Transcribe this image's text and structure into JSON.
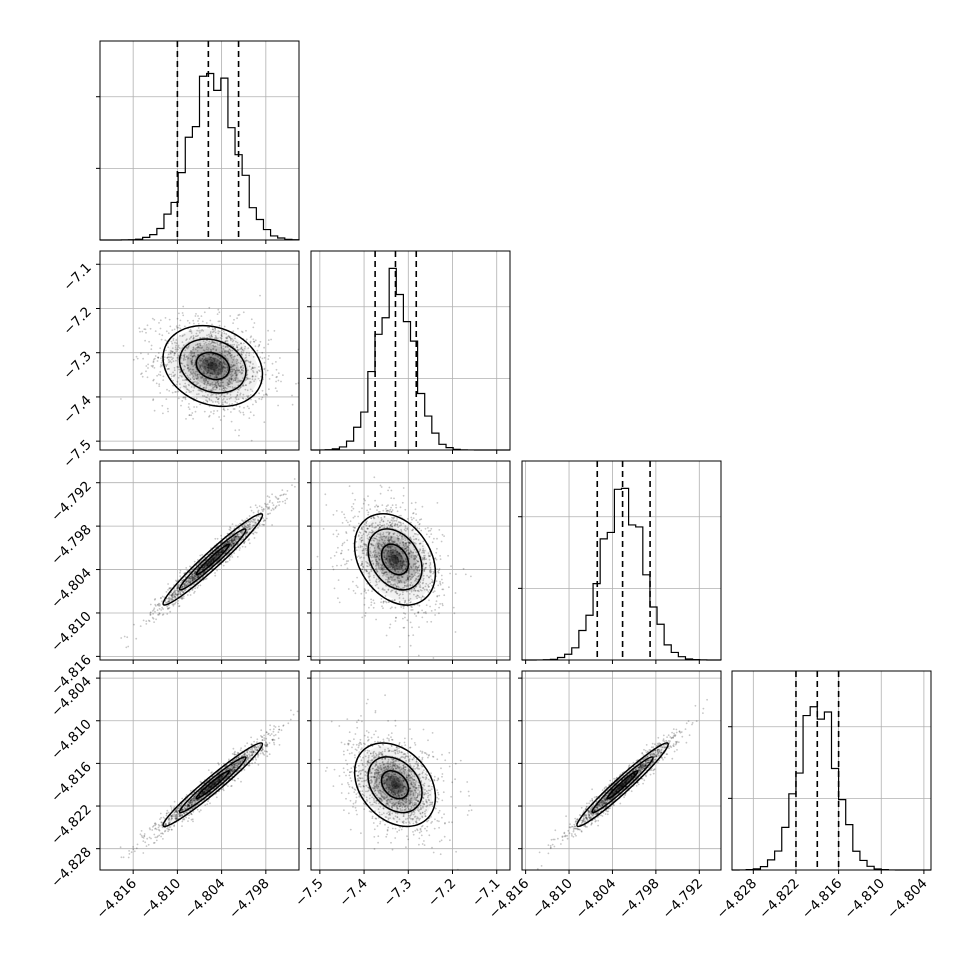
{
  "figure": {
    "type": "corner-plot",
    "grid": true,
    "legend": "none"
  },
  "chart_data": {
    "type": "corner",
    "title": "",
    "parameters": [
      {
        "name": "",
        "range": [
          -4.8205,
          -4.7935
        ],
        "ticks": [
          "−4.816",
          "−4.810",
          "−4.804",
          "−4.798"
        ],
        "tick_values": [
          -4.816,
          -4.81,
          -4.804,
          -4.798
        ],
        "mean": -4.8052,
        "sd": 0.0031,
        "quantiles": [
          -4.81,
          -4.8058,
          -4.8017
        ]
      },
      {
        "name": "",
        "range": [
          -7.52,
          -7.07
        ],
        "ticks": [
          "−7.5",
          "−7.4",
          "−7.3",
          "−7.2",
          "−7.1"
        ],
        "tick_values": [
          -7.5,
          -7.4,
          -7.3,
          -7.2,
          -7.1
        ],
        "mean": -7.33,
        "sd": 0.042,
        "quantiles": [
          -7.375,
          -7.329,
          -7.282
        ]
      },
      {
        "name": "",
        "range": [
          -4.8165,
          -4.789
        ],
        "ticks": [
          "−4.816",
          "−4.810",
          "−4.804",
          "−4.798",
          "−4.792"
        ],
        "tick_values": [
          -4.816,
          -4.81,
          -4.804,
          -4.798,
          -4.792
        ],
        "mean": -4.8026,
        "sd": 0.0029,
        "quantiles": [
          -4.8061,
          -4.8026,
          -4.7988
        ]
      },
      {
        "name": "",
        "range": [
          -4.831,
          -4.803
        ],
        "ticks": [
          "−4.828",
          "−4.822",
          "−4.816",
          "−4.810",
          "−4.804"
        ],
        "tick_values": [
          -4.828,
          -4.822,
          -4.816,
          -4.81,
          -4.804
        ],
        "mean": -4.819,
        "sd": 0.0027,
        "quantiles": [
          -4.822,
          -4.819,
          -4.816
        ]
      }
    ],
    "diagonal_hist_yticks_fraction": [
      0.36,
      0.72
    ],
    "correlations": {
      "1-0": -0.2,
      "2-0": 0.97,
      "2-1": -0.3,
      "3-0": 0.97,
      "3-1": -0.3,
      "3-2": 0.97
    },
    "contour_levels_sigma": [
      0.5,
      1.0,
      1.5
    ],
    "tilt_deg": {
      "1-0": -8,
      "2-1": -72,
      "3-1": -72
    },
    "histogram_bins": 20
  }
}
